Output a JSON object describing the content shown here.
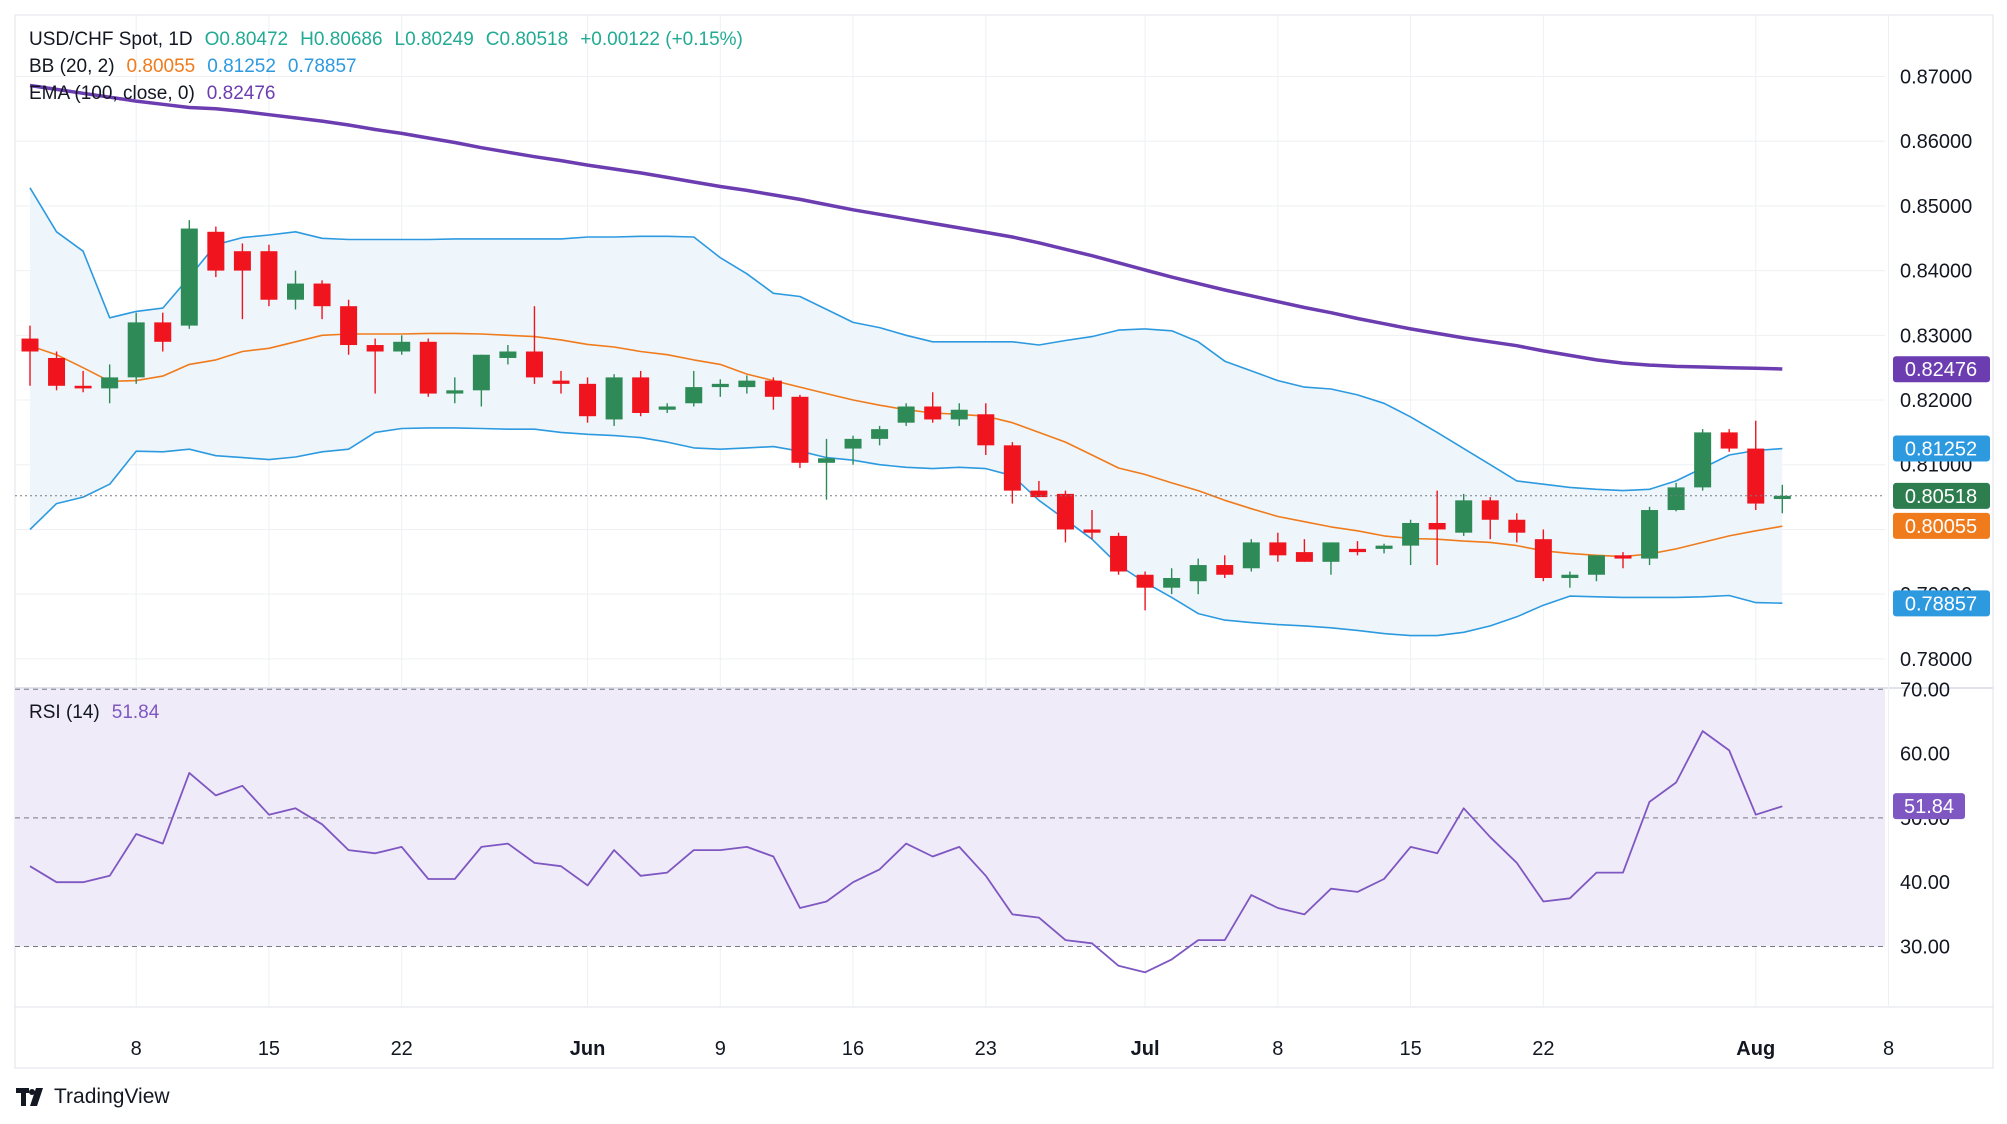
{
  "header": {
    "symbol": "USD/CHF Spot, 1D",
    "open": "O0.80472",
    "high": "H0.80686",
    "low": "L0.80249",
    "close": "C0.80518",
    "change": "+0.00122 (+0.15%)",
    "bb_label": "BB (20, 2)",
    "bb_mid": "0.80055",
    "bb_upper": "0.81252",
    "bb_lower": "0.78857",
    "ema_label": "EMA (100, close, 0)",
    "ema_value": "0.82476",
    "rsi_label": "RSI (14)",
    "rsi_value": "51.84"
  },
  "brand": "TradingView",
  "colors": {
    "up": "#2e8b57",
    "down": "#f0141e",
    "bb_band": "#2d9ae0",
    "bb_mid": "#f07b1c",
    "bb_fill": "#eef6fb",
    "ema": "#6b3db0",
    "rsi_line": "#7e57c2",
    "rsi_fill": "#f0ebf8",
    "grid": "#eef0f3",
    "axis_text": "#131722",
    "close_tag": "#2e7d4f"
  },
  "chart_data": {
    "type": "candlestick",
    "title": "USD/CHF Spot, 1D",
    "xlabel": "",
    "ylabel": "",
    "price_ylim": [
      0.7755,
      0.8795
    ],
    "price_ticks": [
      "0.87000",
      "0.86000",
      "0.85000",
      "0.84000",
      "0.83000",
      "0.82000",
      "0.81000",
      "0.80000",
      "0.79000",
      "0.78000"
    ],
    "x_ticks": [
      "8",
      "15",
      "22",
      "Jun",
      "9",
      "16",
      "23",
      "Jul",
      "8",
      "15",
      "22",
      "Aug",
      "8"
    ],
    "dates": [
      "2025-05-02",
      "2025-05-05",
      "2025-05-06",
      "2025-05-07",
      "2025-05-08",
      "2025-05-09",
      "2025-05-12",
      "2025-05-13",
      "2025-05-14",
      "2025-05-15",
      "2025-05-16",
      "2025-05-19",
      "2025-05-20",
      "2025-05-21",
      "2025-05-22",
      "2025-05-23",
      "2025-05-26",
      "2025-05-27",
      "2025-05-28",
      "2025-05-29",
      "2025-05-30",
      "2025-06-02",
      "2025-06-03",
      "2025-06-04",
      "2025-06-05",
      "2025-06-06",
      "2025-06-09",
      "2025-06-10",
      "2025-06-11",
      "2025-06-12",
      "2025-06-13",
      "2025-06-16",
      "2025-06-17",
      "2025-06-18",
      "2025-06-19",
      "2025-06-20",
      "2025-06-23",
      "2025-06-24",
      "2025-06-25",
      "2025-06-26",
      "2025-06-27",
      "2025-06-30",
      "2025-07-01",
      "2025-07-02",
      "2025-07-03",
      "2025-07-04",
      "2025-07-07",
      "2025-07-08",
      "2025-07-09",
      "2025-07-10",
      "2025-07-11",
      "2025-07-14",
      "2025-07-15",
      "2025-07-16",
      "2025-07-17",
      "2025-07-18",
      "2025-07-21",
      "2025-07-22",
      "2025-07-23",
      "2025-07-24",
      "2025-07-25",
      "2025-07-28",
      "2025-07-29",
      "2025-07-30",
      "2025-07-31",
      "2025-08-01",
      "2025-08-04"
    ],
    "ohlc": [
      [
        0.8295,
        0.8315,
        0.8222,
        0.8275
      ],
      [
        0.8265,
        0.8275,
        0.8215,
        0.8222
      ],
      [
        0.8222,
        0.8245,
        0.8212,
        0.8218
      ],
      [
        0.8218,
        0.8255,
        0.8195,
        0.8235
      ],
      [
        0.8235,
        0.8335,
        0.8225,
        0.832
      ],
      [
        0.832,
        0.8335,
        0.8275,
        0.829
      ],
      [
        0.8315,
        0.8478,
        0.831,
        0.8465
      ],
      [
        0.846,
        0.8468,
        0.839,
        0.84
      ],
      [
        0.843,
        0.8442,
        0.8325,
        0.84
      ],
      [
        0.843,
        0.844,
        0.8345,
        0.8355
      ],
      [
        0.8355,
        0.84,
        0.834,
        0.838
      ],
      [
        0.838,
        0.8385,
        0.8325,
        0.8345
      ],
      [
        0.8345,
        0.8355,
        0.827,
        0.8285
      ],
      [
        0.8285,
        0.8295,
        0.821,
        0.8275
      ],
      [
        0.8275,
        0.83,
        0.827,
        0.829
      ],
      [
        0.829,
        0.8295,
        0.8205,
        0.821
      ],
      [
        0.821,
        0.8235,
        0.8195,
        0.8215
      ],
      [
        0.8215,
        0.827,
        0.819,
        0.827
      ],
      [
        0.8265,
        0.8285,
        0.8255,
        0.8275
      ],
      [
        0.8275,
        0.8345,
        0.8225,
        0.8235
      ],
      [
        0.823,
        0.8245,
        0.821,
        0.8225
      ],
      [
        0.8225,
        0.8235,
        0.8165,
        0.8175
      ],
      [
        0.817,
        0.824,
        0.816,
        0.8235
      ],
      [
        0.8235,
        0.8245,
        0.8175,
        0.818
      ],
      [
        0.8185,
        0.8195,
        0.818,
        0.819
      ],
      [
        0.8195,
        0.8245,
        0.819,
        0.822
      ],
      [
        0.822,
        0.8232,
        0.8205,
        0.8225
      ],
      [
        0.822,
        0.8238,
        0.821,
        0.823
      ],
      [
        0.823,
        0.8235,
        0.8185,
        0.8205
      ],
      [
        0.8205,
        0.8208,
        0.8095,
        0.8103
      ],
      [
        0.8103,
        0.814,
        0.8046,
        0.811
      ],
      [
        0.8125,
        0.8145,
        0.81,
        0.814
      ],
      [
        0.814,
        0.816,
        0.813,
        0.8155
      ],
      [
        0.8165,
        0.8195,
        0.816,
        0.819
      ],
      [
        0.819,
        0.8212,
        0.8165,
        0.817
      ],
      [
        0.817,
        0.8195,
        0.816,
        0.8185
      ],
      [
        0.8178,
        0.8195,
        0.8115,
        0.813
      ],
      [
        0.813,
        0.8135,
        0.804,
        0.806
      ],
      [
        0.806,
        0.8075,
        0.805,
        0.805
      ],
      [
        0.8055,
        0.806,
        0.798,
        0.8
      ],
      [
        0.8,
        0.803,
        0.7985,
        0.7995
      ],
      [
        0.799,
        0.7995,
        0.793,
        0.7935
      ],
      [
        0.793,
        0.7935,
        0.7875,
        0.791
      ],
      [
        0.791,
        0.794,
        0.79,
        0.7925
      ],
      [
        0.792,
        0.7955,
        0.79,
        0.7945
      ],
      [
        0.7945,
        0.796,
        0.7925,
        0.793
      ],
      [
        0.794,
        0.7985,
        0.7935,
        0.798
      ],
      [
        0.798,
        0.7995,
        0.795,
        0.796
      ],
      [
        0.7965,
        0.7985,
        0.795,
        0.795
      ],
      [
        0.795,
        0.798,
        0.793,
        0.798
      ],
      [
        0.797,
        0.7982,
        0.796,
        0.7965
      ],
      [
        0.797,
        0.7978,
        0.7963,
        0.7975
      ],
      [
        0.7975,
        0.8015,
        0.7945,
        0.801
      ],
      [
        0.801,
        0.806,
        0.7945,
        0.8
      ],
      [
        0.7995,
        0.8055,
        0.799,
        0.8045
      ],
      [
        0.8045,
        0.805,
        0.7985,
        0.8015
      ],
      [
        0.8015,
        0.8025,
        0.798,
        0.7995
      ],
      [
        0.7985,
        0.8,
        0.792,
        0.7925
      ],
      [
        0.7925,
        0.7935,
        0.791,
        0.793
      ],
      [
        0.793,
        0.796,
        0.792,
        0.796
      ],
      [
        0.796,
        0.7965,
        0.794,
        0.7955
      ],
      [
        0.7955,
        0.8035,
        0.7945,
        0.803
      ],
      [
        0.803,
        0.8072,
        0.8028,
        0.8065
      ],
      [
        0.8065,
        0.8155,
        0.806,
        0.815
      ],
      [
        0.815,
        0.8155,
        0.812,
        0.8125
      ],
      [
        0.8125,
        0.8168,
        0.803,
        0.804
      ],
      [
        0.8047,
        0.8069,
        0.8025,
        0.8052
      ]
    ],
    "bb_upper": [
      0.8528,
      0.846,
      0.843,
      0.8327,
      0.8337,
      0.8342,
      0.839,
      0.844,
      0.8451,
      0.8455,
      0.846,
      0.845,
      0.8448,
      0.8448,
      0.8448,
      0.8448,
      0.8449,
      0.8449,
      0.8449,
      0.8449,
      0.8449,
      0.8452,
      0.8452,
      0.8453,
      0.8453,
      0.8452,
      0.842,
      0.8395,
      0.8365,
      0.836,
      0.834,
      0.832,
      0.8312,
      0.83,
      0.829,
      0.829,
      0.829,
      0.829,
      0.8285,
      0.8292,
      0.8298,
      0.8308,
      0.831,
      0.8307,
      0.829,
      0.826,
      0.8245,
      0.823,
      0.822,
      0.8217,
      0.8208,
      0.8195,
      0.8174,
      0.815,
      0.8125,
      0.81,
      0.8075,
      0.807,
      0.8065,
      0.8062,
      0.806,
      0.8062,
      0.8075,
      0.8095,
      0.8115,
      0.8122,
      0.8125
    ],
    "bb_mid": [
      0.8284,
      0.827,
      0.825,
      0.8229,
      0.823,
      0.8237,
      0.8255,
      0.8262,
      0.8275,
      0.828,
      0.829,
      0.83,
      0.8302,
      0.8302,
      0.8302,
      0.8303,
      0.8303,
      0.8302,
      0.83,
      0.8298,
      0.8293,
      0.8286,
      0.8282,
      0.8275,
      0.827,
      0.8262,
      0.8255,
      0.824,
      0.823,
      0.822,
      0.821,
      0.82,
      0.8192,
      0.8185,
      0.818,
      0.8178,
      0.8175,
      0.8165,
      0.815,
      0.8135,
      0.8115,
      0.8095,
      0.8085,
      0.8072,
      0.806,
      0.8045,
      0.8032,
      0.802,
      0.8012,
      0.8004,
      0.7998,
      0.799,
      0.7986,
      0.7985,
      0.7982,
      0.798,
      0.7975,
      0.7967,
      0.7963,
      0.796,
      0.7958,
      0.7962,
      0.797,
      0.798,
      0.799,
      0.7998,
      0.8005
    ],
    "bb_lower": [
      0.8,
      0.804,
      0.805,
      0.807,
      0.8121,
      0.812,
      0.8124,
      0.8114,
      0.8111,
      0.8108,
      0.8112,
      0.812,
      0.8124,
      0.815,
      0.8156,
      0.8157,
      0.8157,
      0.8156,
      0.8155,
      0.8155,
      0.815,
      0.8147,
      0.8145,
      0.8142,
      0.8135,
      0.8126,
      0.8124,
      0.8126,
      0.8128,
      0.8121,
      0.8111,
      0.8107,
      0.81,
      0.8096,
      0.8094,
      0.8096,
      0.8094,
      0.8083,
      0.8045,
      0.8015,
      0.7985,
      0.7945,
      0.7918,
      0.7895,
      0.787,
      0.786,
      0.7856,
      0.7853,
      0.7851,
      0.7848,
      0.7844,
      0.7839,
      0.7836,
      0.7836,
      0.7841,
      0.7851,
      0.7865,
      0.7883,
      0.7897,
      0.7896,
      0.7895,
      0.7895,
      0.7895,
      0.7896,
      0.7898,
      0.7887,
      0.7886
    ],
    "ema100": [
      0.8686,
      0.868,
      0.8674,
      0.8668,
      0.8662,
      0.8657,
      0.8652,
      0.865,
      0.8646,
      0.8641,
      0.8636,
      0.8631,
      0.8625,
      0.8618,
      0.8612,
      0.8605,
      0.8598,
      0.859,
      0.8583,
      0.8576,
      0.857,
      0.8563,
      0.8557,
      0.8551,
      0.8544,
      0.8537,
      0.853,
      0.8524,
      0.8517,
      0.851,
      0.8502,
      0.8494,
      0.8487,
      0.848,
      0.8473,
      0.8466,
      0.8459,
      0.8452,
      0.8443,
      0.8433,
      0.8423,
      0.8412,
      0.8401,
      0.839,
      0.838,
      0.837,
      0.8361,
      0.8352,
      0.8343,
      0.8335,
      0.8326,
      0.8318,
      0.831,
      0.8303,
      0.8296,
      0.829,
      0.8284,
      0.8276,
      0.8269,
      0.8262,
      0.8257,
      0.8254,
      0.8252,
      0.8251,
      0.825,
      0.8249,
      0.8248
    ],
    "rsi_ylim": [
      20.6,
      70.2
    ],
    "rsi_ticks": [
      "70.00",
      "60.00",
      "50.00",
      "40.00",
      "30.00"
    ],
    "rsi_levels": [
      70,
      50,
      30
    ],
    "rsi": [
      42.5,
      40.0,
      40.0,
      41.0,
      47.5,
      46.0,
      57.0,
      53.5,
      55.0,
      50.5,
      51.5,
      49.0,
      45.0,
      44.5,
      45.5,
      40.5,
      40.5,
      45.5,
      46.0,
      43.0,
      42.5,
      39.5,
      45.0,
      41.0,
      41.5,
      45.0,
      45.0,
      45.5,
      44.0,
      36.0,
      37.0,
      40.0,
      42.0,
      46.0,
      44.0,
      45.5,
      41.0,
      35.0,
      34.5,
      31.0,
      30.5,
      27.0,
      26.0,
      28.0,
      31.0,
      31.0,
      38.0,
      36.0,
      35.0,
      39.0,
      38.5,
      40.5,
      45.5,
      44.5,
      51.5,
      47.0,
      43.0,
      37.0,
      37.5,
      41.5,
      41.5,
      52.5,
      55.5,
      63.5,
      60.5,
      50.5,
      51.8
    ],
    "price_tags": [
      {
        "label": "0.82476",
        "value": 0.82476,
        "color_key": "ema"
      },
      {
        "label": "0.81252",
        "value": 0.81252,
        "color_key": "bb_band"
      },
      {
        "label": "0.80518",
        "value": 0.80518,
        "color_key": "close_tag"
      },
      {
        "label": "0.80055",
        "value": 0.80055,
        "color_key": "bb_mid"
      },
      {
        "label": "0.78857",
        "value": 0.78857,
        "color_key": "bb_band"
      }
    ],
    "rsi_tag": {
      "label": "51.84",
      "value": 51.84
    }
  }
}
